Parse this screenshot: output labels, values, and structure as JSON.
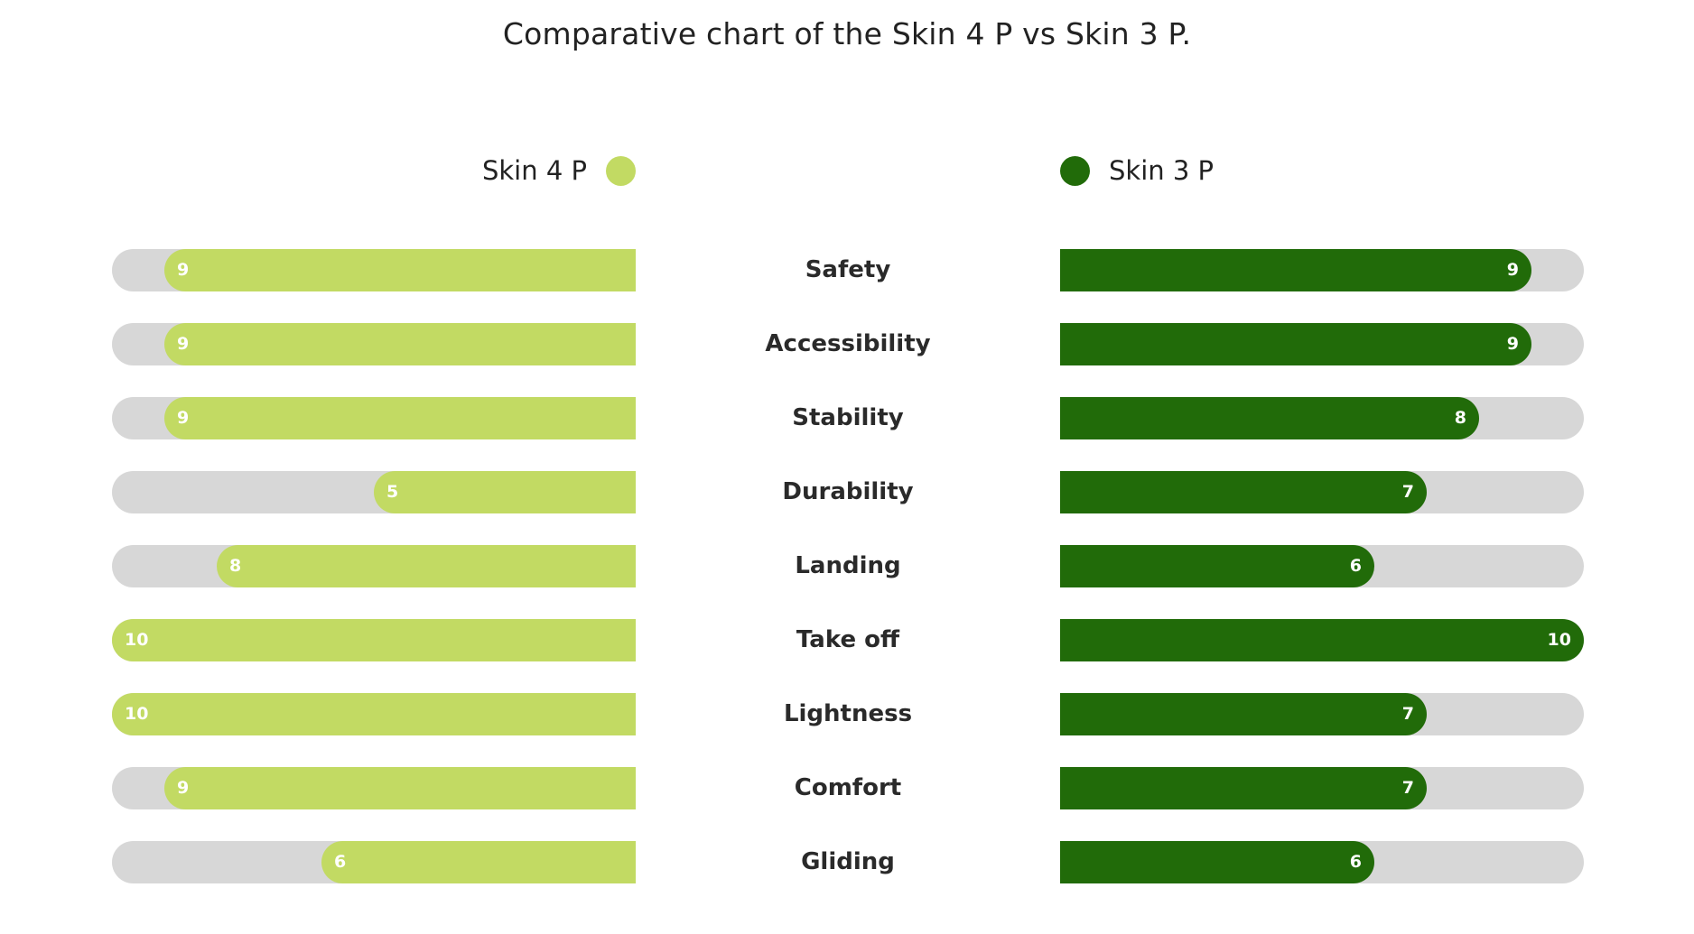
{
  "chart_data": {
    "type": "bar",
    "title": "Comparative chart of the Skin 4 P vs Skin 3 P.",
    "categories": [
      "Safety",
      "Accessibility",
      "Stability",
      "Durability",
      "Landing",
      "Take off",
      "Lightness",
      "Comfort",
      "Gliding"
    ],
    "series": [
      {
        "name": "Skin 4 P",
        "color": "#c2da63",
        "values": [
          9,
          9,
          9,
          5,
          8,
          10,
          10,
          9,
          6
        ]
      },
      {
        "name": "Skin 3 P",
        "color": "#216b09",
        "values": [
          9,
          9,
          8,
          7,
          6,
          10,
          7,
          7,
          6
        ]
      }
    ],
    "xlim": [
      0,
      10
    ],
    "track_color": "#d7d7d7",
    "layout": "diverging-horizontal",
    "legend": "top"
  }
}
